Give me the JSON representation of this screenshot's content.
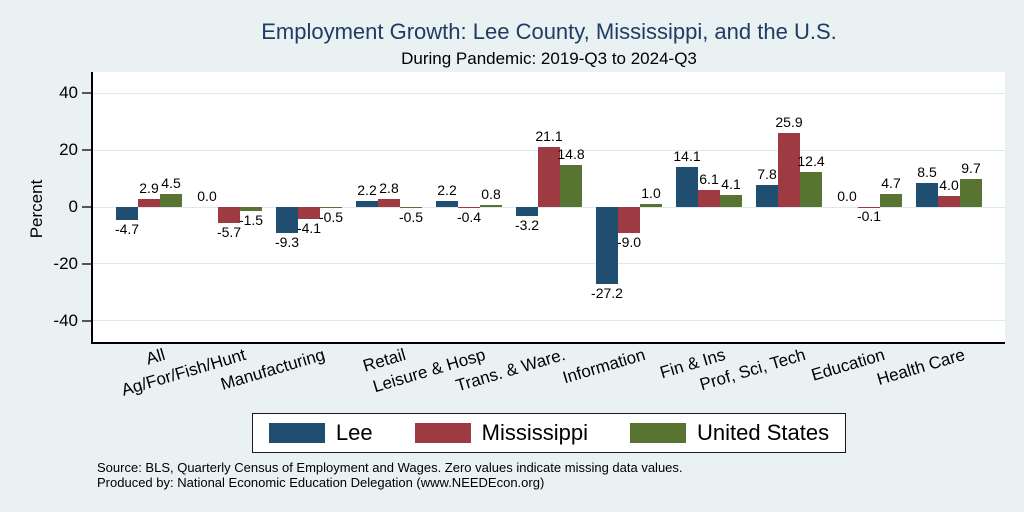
{
  "chart_data": {
    "type": "bar",
    "title": "Employment Growth: Lee County, Mississippi, and the U.S.",
    "subtitle": "During Pandemic: 2019-Q3 to 2024-Q3",
    "ylabel": "Percent",
    "yticks": [
      40,
      20,
      0,
      -20,
      -40
    ],
    "ylim": [
      -47.4,
      47.4
    ],
    "grid": true,
    "legend_position": "bottom",
    "value_labels_decimals": 1,
    "categories": [
      "All",
      "Ag/For/Fish/Hunt",
      "Manufacturing",
      "Retail",
      "Leisure & Hosp",
      "Trans. & Ware.",
      "Information",
      "Fin & Ins",
      "Prof, Sci, Tech",
      "Education",
      "Health Care"
    ],
    "series": [
      {
        "name": "Lee",
        "color": "#1f4e70",
        "values": [
          -4.7,
          0.0,
          -9.3,
          2.2,
          2.2,
          -3.2,
          -27.2,
          14.1,
          7.8,
          0.0,
          8.5
        ]
      },
      {
        "name": "Mississippi",
        "color": "#9e3b42",
        "values": [
          2.9,
          -5.7,
          -4.1,
          2.8,
          -0.4,
          21.1,
          -9.0,
          6.1,
          25.9,
          -0.1,
          4.0
        ]
      },
      {
        "name": "United States",
        "color": "#597431",
        "values": [
          4.5,
          -1.5,
          -0.5,
          -0.5,
          0.8,
          14.8,
          1.0,
          4.1,
          12.4,
          4.7,
          9.7
        ]
      }
    ]
  },
  "footer": {
    "line1": "Source: BLS, Quarterly Census of Employment and Wages. Zero values indicate missing data values.",
    "line2": "Produced by: National Economic Education Delegation (www.NEEDEcon.org)"
  }
}
